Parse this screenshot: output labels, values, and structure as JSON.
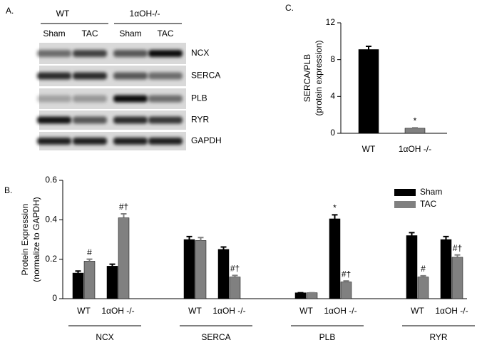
{
  "blot": {
    "label": "A.",
    "genotypes": [
      "WT",
      "1αOH-/-"
    ],
    "conditions": [
      "Sham",
      "TAC",
      "Sham",
      "TAC"
    ],
    "proteins": [
      "NCX",
      "SERCA",
      "PLB",
      "RYR",
      "GAPDH"
    ]
  },
  "chart_data": [
    {
      "type": "bar",
      "label": "B.",
      "ylabel": [
        "Protein Expression",
        "(normalize to GAPDH)"
      ],
      "groups": [
        "NCX",
        "SERCA",
        "PLB",
        "RYR"
      ],
      "categories": [
        "WT",
        "1αOH -/-",
        "WT",
        "1αOH -/-",
        "WT",
        "1αOH -/-",
        "WT",
        "1αOH -/-"
      ],
      "series": [
        {
          "name": "Sham",
          "color": "#000000",
          "values": [
            0.13,
            0.165,
            0.3,
            0.25,
            0.03,
            0.405,
            0.32,
            0.3
          ],
          "errors": [
            0.01,
            0.01,
            0.015,
            0.012,
            0,
            0.02,
            0.015,
            0.015
          ],
          "annotations": [
            null,
            null,
            null,
            null,
            null,
            "*",
            null,
            null
          ]
        },
        {
          "name": "TAC",
          "color": "#808080",
          "values": [
            0.19,
            0.41,
            0.295,
            0.11,
            0.03,
            0.085,
            0.11,
            0.21
          ],
          "errors": [
            0.01,
            0.02,
            0.015,
            0.008,
            0,
            0.005,
            0.006,
            0.012
          ],
          "annotations": [
            "#",
            "#†",
            null,
            "#†",
            null,
            "#†",
            "#",
            "#†"
          ]
        }
      ],
      "ylim": [
        0,
        0.6
      ],
      "yticks": [
        0,
        0.2,
        0.4,
        0.6
      ],
      "legend": "upper right"
    },
    {
      "type": "bar",
      "label": "C.",
      "ylabel": [
        "SERCA/PLB",
        "(protein expression)"
      ],
      "categories": [
        "WT",
        "1αOH -/-"
      ],
      "values": [
        9.1,
        0.55
      ],
      "errors": [
        0.35,
        0.05
      ],
      "colors": [
        "#000000",
        "#808080"
      ],
      "annotations": [
        null,
        "*"
      ],
      "ylim": [
        0,
        12
      ],
      "yticks": [
        0,
        4,
        8,
        12
      ]
    }
  ]
}
